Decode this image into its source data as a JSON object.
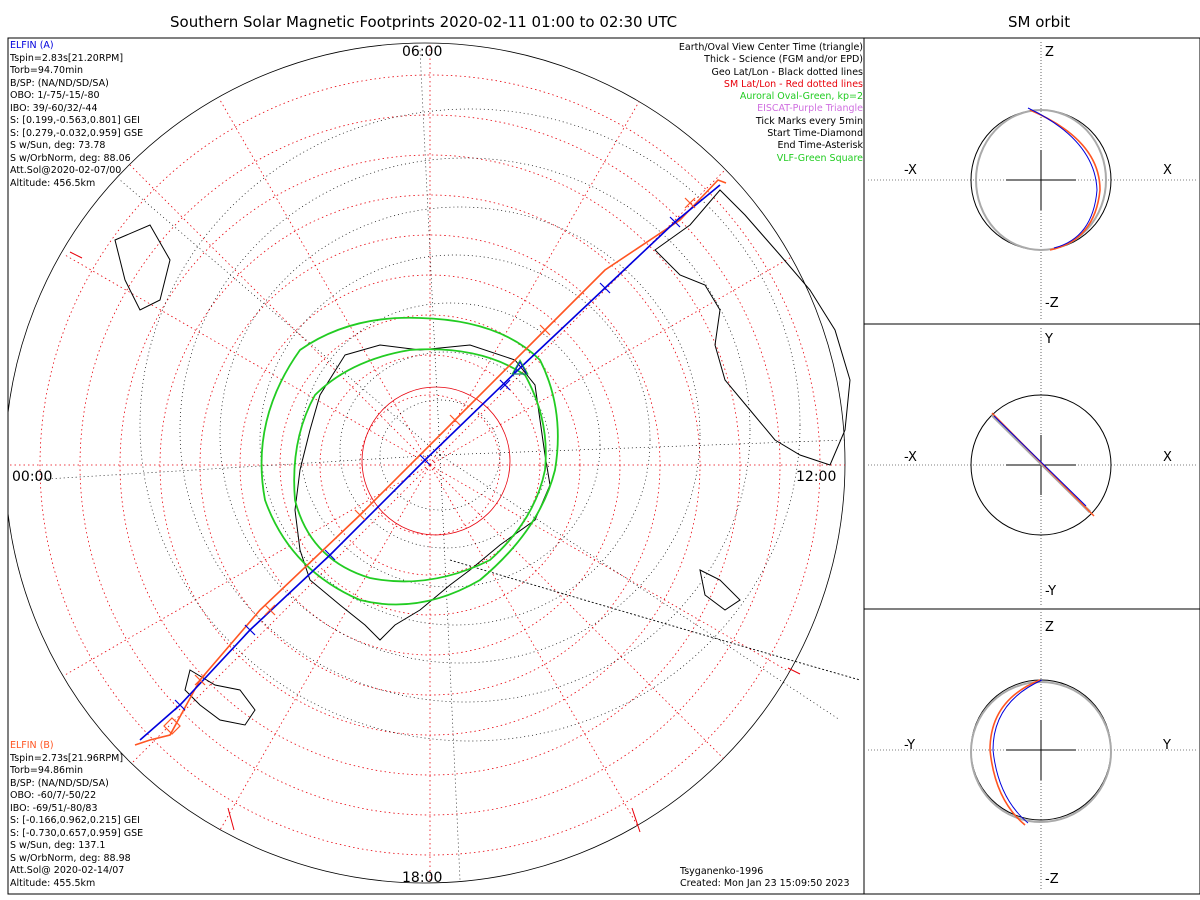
{
  "main": {
    "title": "Southern Solar Magnetic Footprints 2020-02-11 01:00 to 02:30 UTC",
    "clock": {
      "top": "06:00",
      "left": "00:00",
      "right": "12:00",
      "bottom": "18:00"
    },
    "legend": [
      {
        "text": "Earth/Oval View Center Time (triangle)",
        "color": "#000000"
      },
      {
        "text": "Thick - Science (FGM and/or EPD)",
        "color": "#000000"
      },
      {
        "text": "Geo Lat/Lon - Black dotted lines",
        "color": "#000000"
      },
      {
        "text": "SM Lat/Lon - Red dotted lines",
        "color": "#e8000b"
      },
      {
        "text": "Auroral Oval-Green, kp=2",
        "color": "#22cc22"
      },
      {
        "text": "EISCAT-Purple Triangle",
        "color": "#d070e0"
      },
      {
        "text": "Tick Marks every 5min",
        "color": "#000000"
      },
      {
        "text": "Start Time-Diamond",
        "color": "#000000"
      },
      {
        "text": "End Time-Asterisk",
        "color": "#000000"
      },
      {
        "text": "VLF-Green Square",
        "color": "#22cc22"
      }
    ],
    "elfin_a": {
      "name": "ELFIN (A)",
      "color": "#0000dd",
      "lines": [
        "Tspin=2.83s[21.20RPM]",
        "Torb=94.70min",
        "B/SP: (NA/ND/SD/SA)",
        "OBO: 1/-75/-15/-80",
        "IBO: 39/-60/32/-44",
        "S: [0.199,-0.563,0.801] GEI",
        "S: [0.279,-0.032,0.959] GSE",
        "S w/Sun, deg: 73.78",
        "S w/OrbNorm, deg: 88.06",
        "Att.Sol@2020-02-07/00",
        "Altitude: 456.5km"
      ]
    },
    "elfin_b": {
      "name": "ELFIN (B)",
      "color": "#ff5522",
      "lines": [
        "Tspin=2.73s[21.96RPM]",
        "Torb=94.86min",
        "B/SP: (NA/ND/SD/SA)",
        "OBO: -60/7/-50/22",
        "IBO: -69/51/-80/83",
        "S: [-0.166,0.962,0.215] GEI",
        "S: [-0.730,0.657,0.959] GSE",
        "S w/Sun, deg: 137.1",
        "S w/OrbNorm, deg: 88.98",
        "Att.Sol@ 2020-02-14/07",
        "Altitude: 455.5km"
      ]
    },
    "model": "Tsyganenko-1996",
    "created": "Created: Mon Jan 23 15:09:50 2023"
  },
  "orbit": {
    "title": "SM orbit",
    "panels": [
      {
        "top": "Z",
        "bottom": "-Z",
        "left": "-X",
        "right": "X"
      },
      {
        "top": "Y",
        "bottom": "-Y",
        "left": "-X",
        "right": "X"
      },
      {
        "top": "Z",
        "bottom": "-Z",
        "left": "-Y",
        "right": "Y"
      }
    ]
  }
}
